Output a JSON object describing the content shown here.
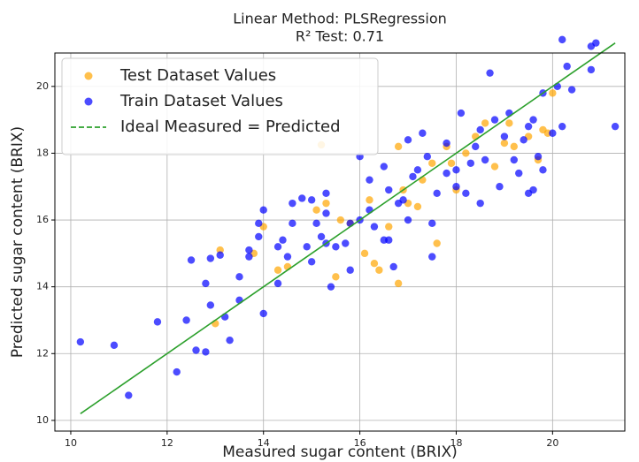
{
  "chart_data": {
    "type": "scatter",
    "title": "Linear Method: PLSRegression",
    "subtitle": "R² Test: 0.71",
    "xlabel": "Measured sugar content (BRIX)",
    "ylabel": "Predicted sugar content (BRIX)",
    "xlim": [
      9.67,
      21.5
    ],
    "ylim": [
      9.68,
      21.0
    ],
    "xticks": [
      10,
      12,
      14,
      16,
      18,
      20
    ],
    "yticks": [
      10,
      12,
      14,
      16,
      18,
      20
    ],
    "grid": true,
    "legend": "upper left",
    "series": [
      {
        "name": "Test Dataset Values",
        "color": "#ffa500",
        "x": [
          13.0,
          13.1,
          13.8,
          14.0,
          14.3,
          14.5,
          15.1,
          15.2,
          15.3,
          15.5,
          15.6,
          15.8,
          16.1,
          16.2,
          16.3,
          16.4,
          16.6,
          16.8,
          16.8,
          17.0,
          17.2,
          17.3,
          17.5,
          17.6,
          17.8,
          18.0,
          18.2,
          18.4,
          18.8,
          19.0,
          19.1,
          19.2,
          19.5,
          19.7,
          19.8,
          19.9,
          20.0,
          18.6,
          17.9,
          16.9
        ],
        "values": [
          12.9,
          15.1,
          15.0,
          15.8,
          14.5,
          14.6,
          16.3,
          18.25,
          16.5,
          14.3,
          16.0,
          15.9,
          15.0,
          16.6,
          14.7,
          14.5,
          15.8,
          14.1,
          18.2,
          16.5,
          16.4,
          17.2,
          17.7,
          15.3,
          18.2,
          16.9,
          18.0,
          18.5,
          17.6,
          18.3,
          18.9,
          18.2,
          18.5,
          17.8,
          18.7,
          18.6,
          19.8,
          18.9,
          17.7,
          16.9
        ]
      },
      {
        "name": "Train Dataset Values",
        "color": "#0000ff",
        "x": [
          10.2,
          10.9,
          11.2,
          11.8,
          12.2,
          12.4,
          12.6,
          12.8,
          12.9,
          13.3,
          13.2,
          12.5,
          12.8,
          12.9,
          13.1,
          13.5,
          13.7,
          13.5,
          13.9,
          13.9,
          14.0,
          14.0,
          14.3,
          14.4,
          14.3,
          14.6,
          14.6,
          14.5,
          14.8,
          14.9,
          15.0,
          15.1,
          15.2,
          15.3,
          15.3,
          15.3,
          15.4,
          15.5,
          15.7,
          15.8,
          15.8,
          16.0,
          16.0,
          16.2,
          16.2,
          16.5,
          16.5,
          16.6,
          16.6,
          16.7,
          16.8,
          16.9,
          17.0,
          17.0,
          17.1,
          17.2,
          17.3,
          17.4,
          17.5,
          17.5,
          17.6,
          17.8,
          17.8,
          18.0,
          18.0,
          18.1,
          18.2,
          18.3,
          18.4,
          18.5,
          18.5,
          18.6,
          18.7,
          18.8,
          18.9,
          19.0,
          19.1,
          19.2,
          19.3,
          19.4,
          19.5,
          19.6,
          19.6,
          19.7,
          19.8,
          19.8,
          20.0,
          20.1,
          20.2,
          20.2,
          20.3,
          20.4,
          20.8,
          20.8,
          20.9,
          21.3,
          19.5,
          16.3,
          15.0,
          13.7
        ],
        "values": [
          12.35,
          12.25,
          10.75,
          12.95,
          11.45,
          13.0,
          12.1,
          12.05,
          13.45,
          12.4,
          13.1,
          14.8,
          14.1,
          14.85,
          14.95,
          14.3,
          14.9,
          13.6,
          15.5,
          15.9,
          16.3,
          13.2,
          15.2,
          15.4,
          14.1,
          15.9,
          16.5,
          14.9,
          16.65,
          15.2,
          16.6,
          15.9,
          15.5,
          15.3,
          16.2,
          16.8,
          14.0,
          15.2,
          15.3,
          15.9,
          14.5,
          16.0,
          17.9,
          16.3,
          17.2,
          15.4,
          17.6,
          16.9,
          15.4,
          14.6,
          16.5,
          16.6,
          18.4,
          16.0,
          17.3,
          17.5,
          18.6,
          17.9,
          14.9,
          15.9,
          16.8,
          17.4,
          18.3,
          17.0,
          17.5,
          19.2,
          16.8,
          17.7,
          18.2,
          18.7,
          16.5,
          17.8,
          20.4,
          19.0,
          17.0,
          18.5,
          19.2,
          17.8,
          17.4,
          18.4,
          18.8,
          19.0,
          16.9,
          17.9,
          19.8,
          17.5,
          18.6,
          20.0,
          18.8,
          21.4,
          20.6,
          19.9,
          21.2,
          20.5,
          21.3,
          18.8,
          16.8,
          15.8,
          14.75,
          15.1
        ]
      },
      {
        "name": "Ideal Measured = Predicted",
        "color": "#2ca02c",
        "style": "line",
        "x": [
          10.2,
          21.3
        ],
        "values": [
          10.2,
          21.3
        ]
      }
    ]
  }
}
